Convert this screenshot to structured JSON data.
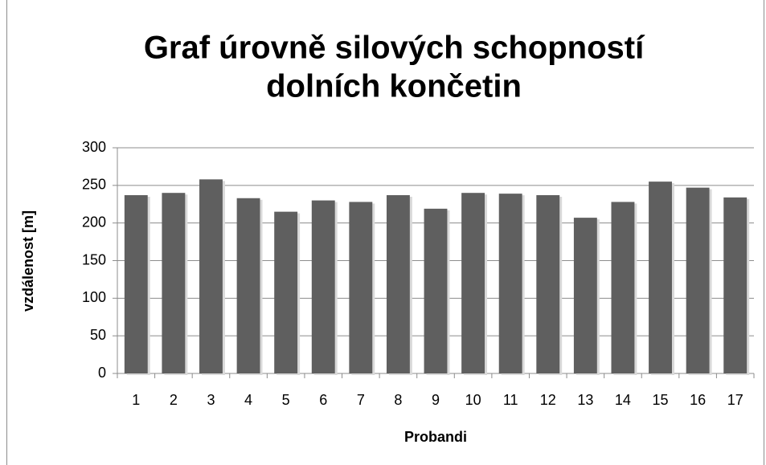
{
  "chart_data": {
    "type": "bar",
    "title": [
      "Graf úrovně silových schopností",
      "dolních končetin"
    ],
    "x_label": "Probandi",
    "y_label": "vzdálenost [m]",
    "categories": [
      "1",
      "2",
      "3",
      "4",
      "5",
      "6",
      "7",
      "8",
      "9",
      "10",
      "11",
      "12",
      "13",
      "14",
      "15",
      "16",
      "17"
    ],
    "values": [
      237,
      240,
      258,
      233,
      215,
      230,
      228,
      237,
      219,
      240,
      239,
      237,
      207,
      228,
      255,
      247,
      234
    ],
    "color": "#5f5f5f",
    "ylim": [
      0,
      300
    ],
    "yticks": [
      0,
      50,
      100,
      150,
      200,
      250,
      300
    ],
    "grid": true
  }
}
